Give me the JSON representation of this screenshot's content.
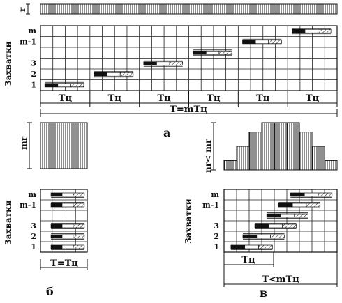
{
  "resource_axis_label": "r",
  "panel_a": {
    "ylabel": "Захватки",
    "rows": [
      "1",
      "2",
      "3",
      "m-1",
      "m"
    ],
    "cycle_label": "Тц",
    "cycle_count": 6,
    "total_label": "T=mТц",
    "panel_letter": "а"
  },
  "panel_b": {
    "resource_label": "mr",
    "ylabel": "Захватки",
    "rows": [
      "1",
      "2",
      "3",
      "m-1",
      "m"
    ],
    "total_label": "Т=Тц",
    "panel_letter": "б"
  },
  "panel_c": {
    "resource_label": "nr< mr",
    "ylabel": "Захватки",
    "rows": [
      "1",
      "2",
      "3",
      "m-1",
      "m"
    ],
    "cycle_label": "Тц",
    "total_label": "T<mТц",
    "panel_letter": "в",
    "histogram_levels": [
      0.2,
      0.5,
      0.8,
      1.0,
      1.0,
      1.0,
      0.8,
      0.5,
      0.2
    ]
  }
}
